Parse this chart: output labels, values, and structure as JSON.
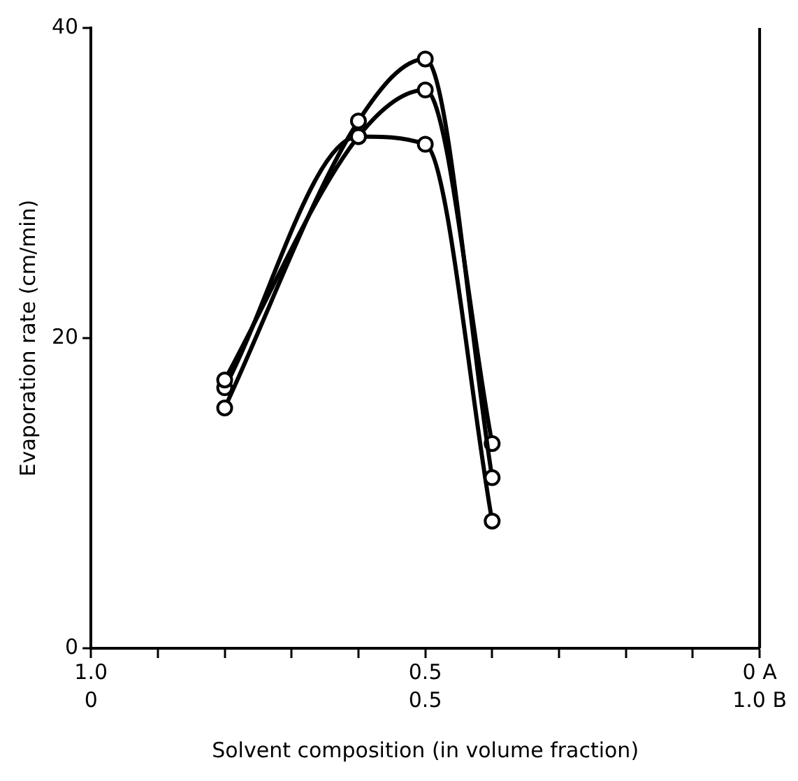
{
  "chart_data": {
    "type": "line",
    "xlabel": "Solvent composition (in volume fraction)",
    "ylabel": "Evaporation rate (cm/min)",
    "x": [
      0.8,
      0.6,
      0.5,
      0.4
    ],
    "series": [
      {
        "color": "#000000",
        "values": [
          15.5,
          34,
          38,
          11
        ]
      },
      {
        "color": "#000000",
        "values": [
          17.3,
          33,
          36,
          13.2
        ]
      },
      {
        "color": "#000000",
        "values": [
          16.8,
          33,
          32.5,
          8.2
        ]
      }
    ],
    "xlim": [
      1,
      0
    ],
    "xticks": [
      {
        "value": 1,
        "label": "1.0"
      },
      {
        "value": 0.9,
        "label": null
      },
      {
        "value": 0.8,
        "label": null
      },
      {
        "value": 0.7,
        "label": null
      },
      {
        "value": 0.6,
        "label": null
      },
      {
        "value": 0.5,
        "label": "0.5"
      },
      {
        "value": 0.4,
        "label": null
      },
      {
        "value": 0.3,
        "label": null
      },
      {
        "value": 0.2,
        "label": null
      },
      {
        "value": 0.1,
        "label": null
      },
      {
        "value": 0,
        "label": "0 A"
      }
    ],
    "x2lim": [
      0,
      1
    ],
    "x2ticks": [
      {
        "value": 0,
        "label": "0"
      },
      {
        "value": 0.5,
        "label": "0.5"
      },
      {
        "value": 1,
        "label": "1.0 B"
      }
    ],
    "ylim": [
      0,
      40
    ],
    "yticks": [
      0,
      20,
      40
    ],
    "grid": false,
    "legend": false,
    "marker": "circle",
    "line_style": "solid"
  }
}
